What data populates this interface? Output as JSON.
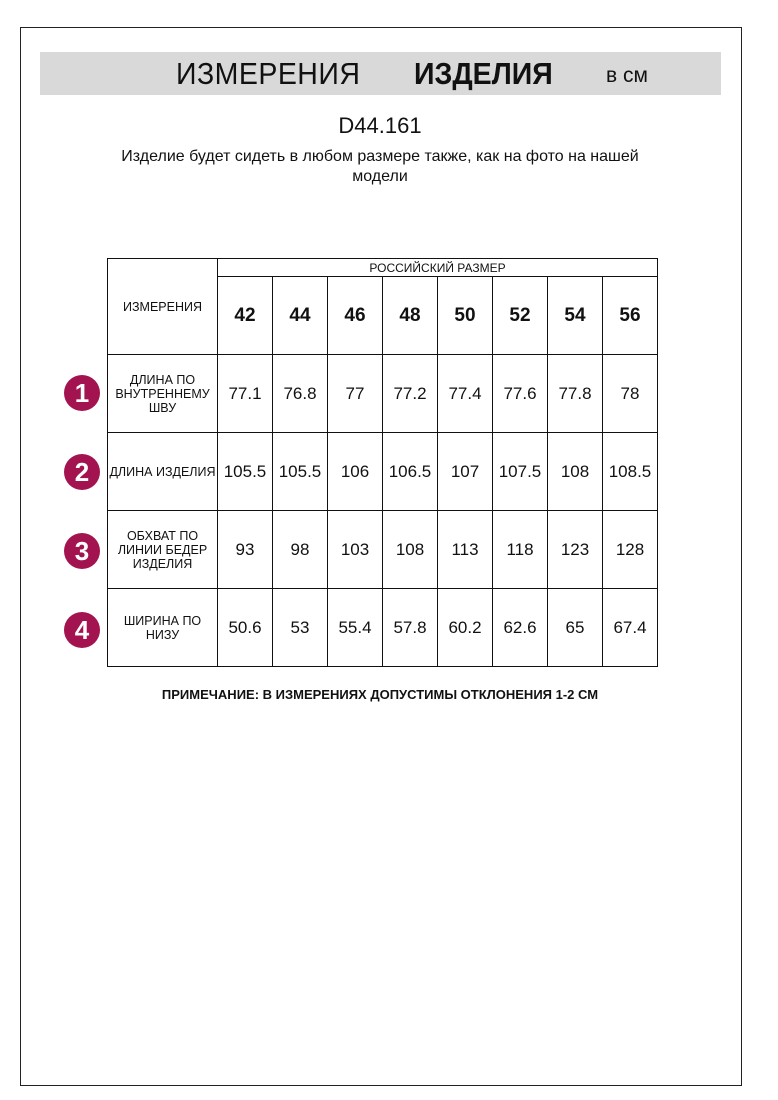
{
  "header": {
    "title_regular": "ИЗМЕРЕНИЯ",
    "title_bold": "ИЗДЕЛИЯ",
    "unit": "в см"
  },
  "product_code": "D44.161",
  "subtitle": "Изделие будет сидеть в любом размере также, как на фото на нашей модели",
  "badge_color": "#a3134f",
  "table": {
    "corner_label": "ИЗМЕРЕНИЯ",
    "group_header": "РОССИЙСКИЙ РАЗМЕР",
    "sizes": [
      "42",
      "44",
      "46",
      "48",
      "50",
      "52",
      "54",
      "56"
    ],
    "rows": [
      {
        "num": "1",
        "label": "ДЛИНА ПО ВНУТРЕННЕМУ ШВУ",
        "values": [
          "77.1",
          "76.8",
          "77",
          "77.2",
          "77.4",
          "77.6",
          "77.8",
          "78"
        ]
      },
      {
        "num": "2",
        "label": "ДЛИНА ИЗДЕЛИЯ",
        "values": [
          "105.5",
          "105.5",
          "106",
          "106.5",
          "107",
          "107.5",
          "108",
          "108.5"
        ]
      },
      {
        "num": "3",
        "label": "ОБХВАТ ПО ЛИНИИ БЕДЕР ИЗДЕЛИЯ",
        "values": [
          "93",
          "98",
          "103",
          "108",
          "113",
          "118",
          "123",
          "128"
        ]
      },
      {
        "num": "4",
        "label": "ШИРИНА ПО НИЗУ",
        "values": [
          "50.6",
          "53",
          "55.4",
          "57.8",
          "60.2",
          "62.6",
          "65",
          "67.4"
        ]
      }
    ]
  },
  "note": "ПРИМЕЧАНИЕ: В ИЗМЕРЕНИЯХ ДОПУСТИМЫ ОТКЛОНЕНИЯ 1-2 СМ"
}
